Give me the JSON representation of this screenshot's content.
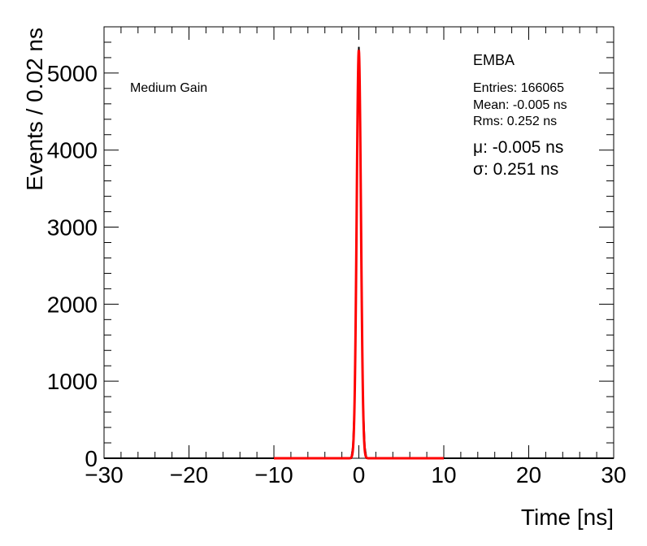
{
  "chart_data": {
    "type": "line",
    "xlabel": "Time [ns]",
    "ylabel": "Events / 0.02 ns",
    "xlim": [
      -30,
      30
    ],
    "ylim": [
      0,
      5600
    ],
    "x_ticks": [
      -30,
      -20,
      -10,
      0,
      10,
      20,
      30
    ],
    "x_tick_labels": [
      "−30",
      "−20",
      "−10",
      "0",
      "10",
      "20",
      "30"
    ],
    "y_ticks": [
      0,
      1000,
      2000,
      3000,
      4000,
      5000
    ],
    "y_tick_labels": [
      "0",
      "1000",
      "2000",
      "3000",
      "4000",
      "5000"
    ],
    "grid": false,
    "annotations": {
      "gain": "Medium Gain",
      "detector": "EMBA",
      "entries": "Entries: 166065",
      "mean": "Mean: -0.005 ns",
      "rms": "Rms: 0.252 ns",
      "fit_mu": "μ: -0.005 ns",
      "fit_sigma": "σ: 0.251 ns"
    },
    "series": [
      {
        "kind": "histogram",
        "color": "#000000",
        "x": [
          -0.9,
          -0.7,
          -0.5,
          -0.4,
          -0.3,
          -0.2,
          -0.1,
          0.0,
          0.1,
          0.2,
          0.3,
          0.4,
          0.5,
          0.7,
          0.9
        ],
        "y": [
          0,
          150,
          700,
          1500,
          2600,
          3900,
          4900,
          5340,
          4900,
          3900,
          2600,
          1500,
          700,
          150,
          0
        ]
      },
      {
        "kind": "fit",
        "color": "#ff0000",
        "range": [
          -10,
          10
        ],
        "mu": -0.005,
        "sigma": 0.251,
        "amplitude": 5300
      }
    ]
  }
}
